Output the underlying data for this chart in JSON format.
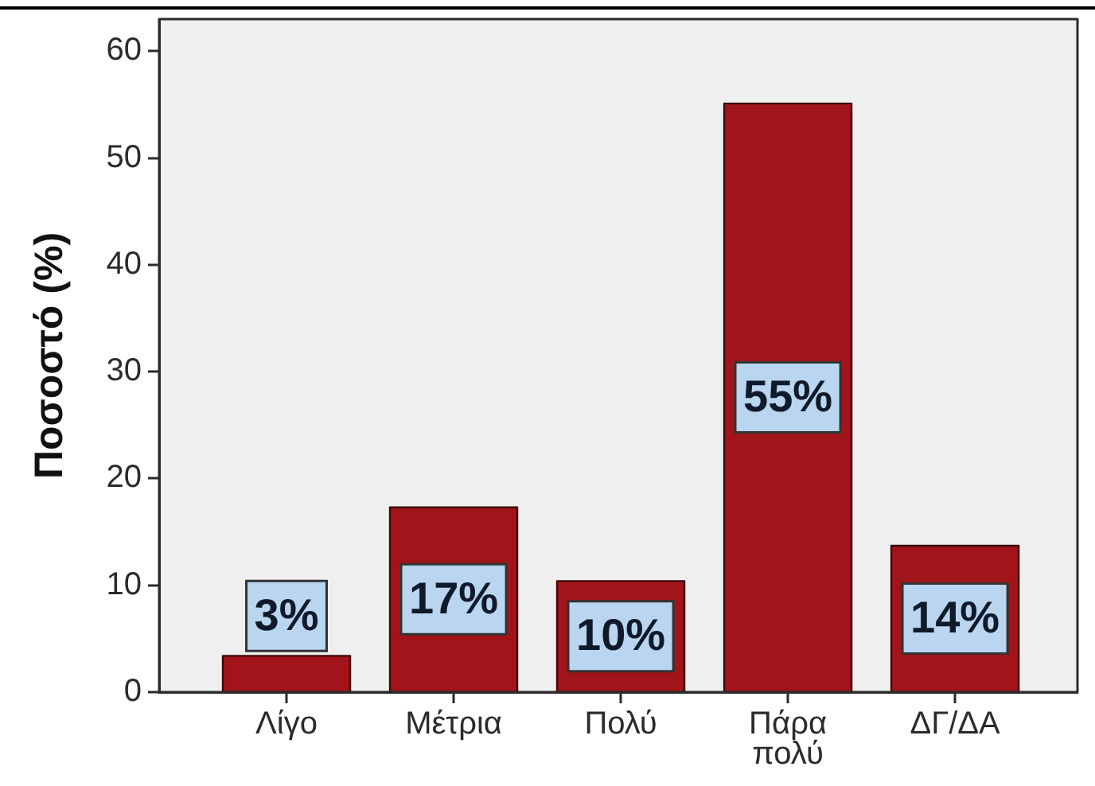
{
  "chart_data": {
    "type": "bar",
    "ylabel": "Ποσοστό (%)",
    "categories": [
      "Λίγο",
      "Μέτρια",
      "Πολύ",
      "Πάρα πολύ",
      "ΔΓ/ΔΑ"
    ],
    "values": [
      3.4,
      17.3,
      10.4,
      55.1,
      13.7
    ],
    "value_labels": [
      "3%",
      "17%",
      "10%",
      "55%",
      "14%"
    ],
    "color": "#a11419",
    "ylim": [
      0,
      63
    ],
    "yticks": [
      0,
      10,
      20,
      30,
      40,
      50,
      60
    ]
  }
}
